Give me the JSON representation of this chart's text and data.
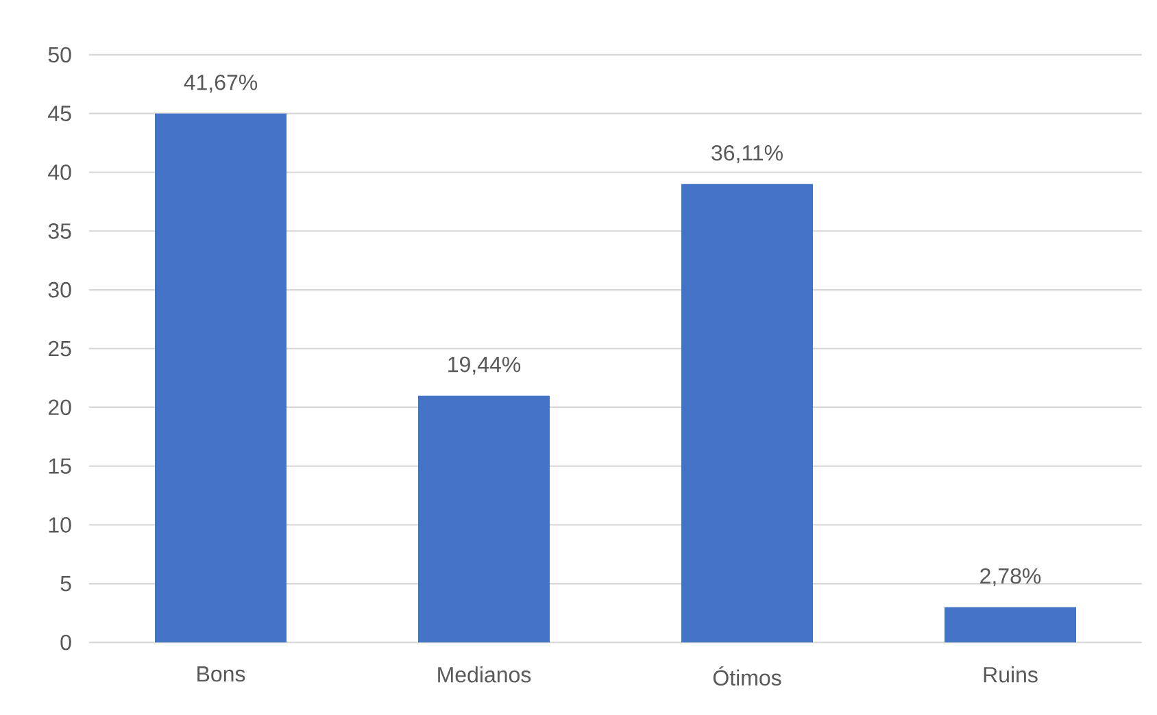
{
  "chart_data": {
    "type": "bar",
    "categories": [
      "Bons",
      "Medianos",
      "Ótimos",
      "Ruins"
    ],
    "values": [
      45,
      21,
      39,
      3
    ],
    "annotations": [
      {
        "text": "41,67%",
        "x": "Bons",
        "y": 45
      },
      {
        "text": "19,44%",
        "x": "Medianos",
        "y": 21
      },
      {
        "text": "36,11%",
        "x": "Ótimos",
        "y": 39
      },
      {
        "text": "2,78%",
        "x": "Ruins",
        "y": 3
      }
    ],
    "color": "#4472c4",
    "ylim": [
      0,
      50
    ],
    "yticks": [
      0,
      5,
      10,
      15,
      20,
      25,
      30,
      35,
      40,
      45,
      50
    ],
    "grid": "y"
  }
}
